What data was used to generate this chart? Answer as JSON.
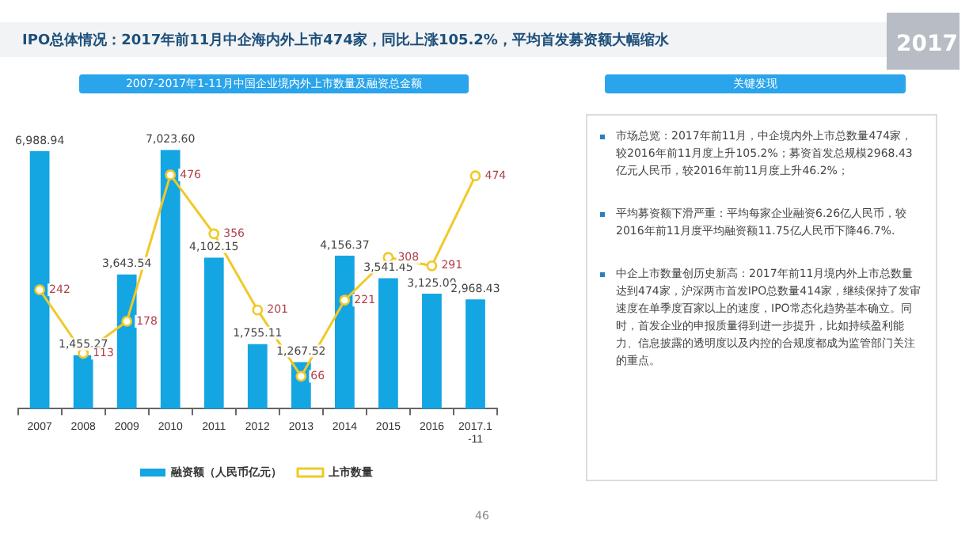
{
  "chart_data": [
    {
      "type": "bar",
      "title": "IPO总体情况：2017年前11月中企海内外上市474家，同比上涨105.2%，平均首发募资额大幅缩水",
      "subtitle": "2007-2017年1-11月中国企业境内外上市数量及融资总金额",
      "categories": [
        "2007",
        "2008",
        "2009",
        "2010",
        "2011",
        "2012",
        "2013",
        "2014",
        "2015",
        "2016",
        "2017.1-11"
      ],
      "series": [
        {
          "name": "融资额（人民币亿元）",
          "type": "bar",
          "color": "#14a5e3",
          "values": [
            6988.94,
            1455.27,
            3643.54,
            7023.6,
            4102.15,
            1755.11,
            1267.52,
            4156.37,
            3541.45,
            3125.0,
            2968.43
          ],
          "value_labels": [
            "6,988.94",
            "1,455.27",
            "3,643.54",
            "7,023.60",
            "4,102.15",
            "1,755.11",
            "1,267.52",
            "4,156.37",
            "3,541.45",
            "3,125.00",
            "2,968.43"
          ]
        },
        {
          "name": "上市数量",
          "type": "line",
          "axis": "y2",
          "color": "#f0c929",
          "marker": "circle",
          "values": [
            242,
            113,
            178,
            476,
            356,
            201,
            66,
            221,
            308,
            291,
            474
          ],
          "value_labels": [
            "242",
            "113",
            "178",
            "476",
            "356",
            "201",
            "66",
            "221",
            "308",
            "291",
            "474"
          ]
        }
      ],
      "legend": "bottom",
      "annotations": [
        "2017",
        "46"
      ]
    },
    {
      "type": "other",
      "title": "关键发现",
      "annotations": [
        "市场总览：2017年前11月，中企境内外上市总数量474家，较2016年前11月度上升105.2%；募资首发总规模2968.43亿元人民币，较2016年前11月度上升46.2%；",
        "平均募资额下滑严重：平均每家企业融资6.26亿人民币，较2016年前11月度平均融资额11.75亿人民币下降46.7%.",
        "中企上市数量创历史新高：2017年前11月境内外上市总数量达到474家，沪深两市首发IPO总数量414家，继续保持了发审速度在单季度百家以上的速度，IPO常态化趋势基本确立。同时，首发企业的申报质量得到进一步提升，比如持续盈利能力、信息披露的透明度以及内控的合规度都成为监管部门关注的重点。"
      ]
    }
  ]
}
